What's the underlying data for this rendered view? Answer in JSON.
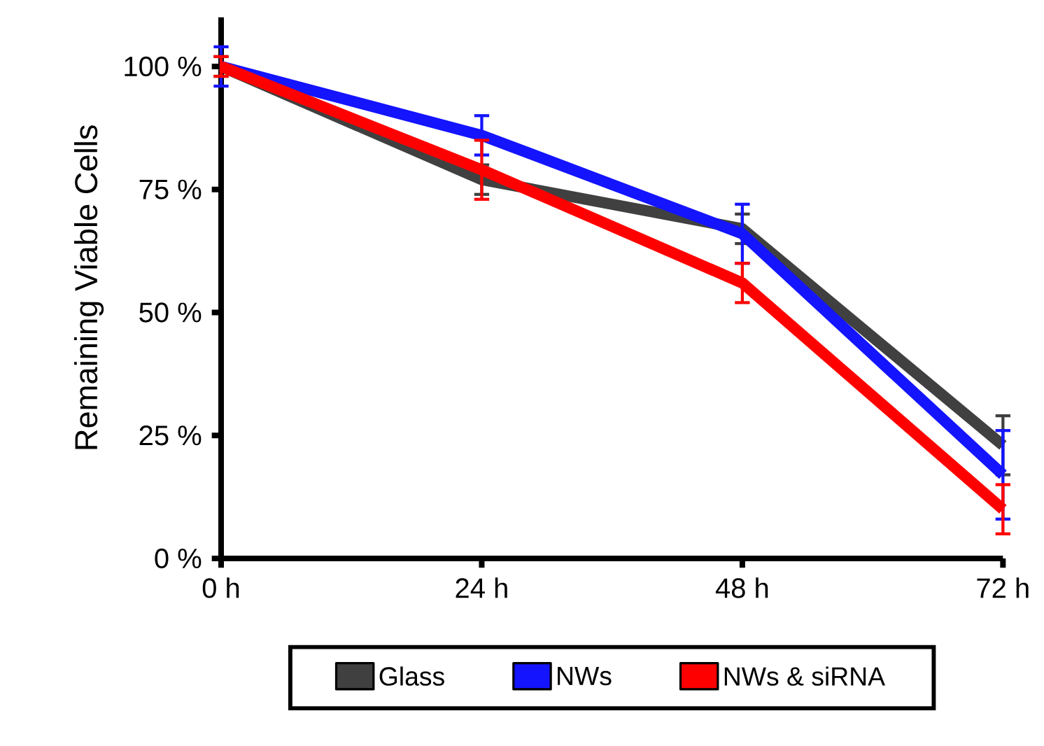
{
  "chart_data": {
    "type": "line",
    "ylabel": "Remaining Viable Cells",
    "x": [
      0,
      24,
      48,
      72
    ],
    "xlim": [
      0,
      72
    ],
    "ylim": [
      0,
      110
    ],
    "xticks": [
      {
        "value": 0,
        "label": "0 h"
      },
      {
        "value": 24,
        "label": "24 h"
      },
      {
        "value": 48,
        "label": "48 h"
      },
      {
        "value": 72,
        "label": "72 h"
      }
    ],
    "yticks": [
      {
        "value": 0,
        "label": "0 %"
      },
      {
        "value": 25,
        "label": "25 %"
      },
      {
        "value": 50,
        "label": "50 %"
      },
      {
        "value": 75,
        "label": "75 %"
      },
      {
        "value": 100,
        "label": "100 %"
      }
    ],
    "series": [
      {
        "name": "Glass",
        "color": "#404040",
        "values": [
          100,
          77,
          67,
          23
        ],
        "errors": [
          2,
          3,
          3,
          6
        ]
      },
      {
        "name": "NWs",
        "color": "#1414ff",
        "values": [
          100,
          86,
          66,
          17
        ],
        "errors": [
          4,
          4,
          6,
          9
        ]
      },
      {
        "name": "NWs & siRNA",
        "color": "#ff0000",
        "values": [
          100,
          79,
          56,
          10
        ],
        "errors": [
          2,
          6,
          4,
          5
        ]
      }
    ],
    "legend": "bottom",
    "marker": "none",
    "line_style": "solid",
    "grid": false
  }
}
